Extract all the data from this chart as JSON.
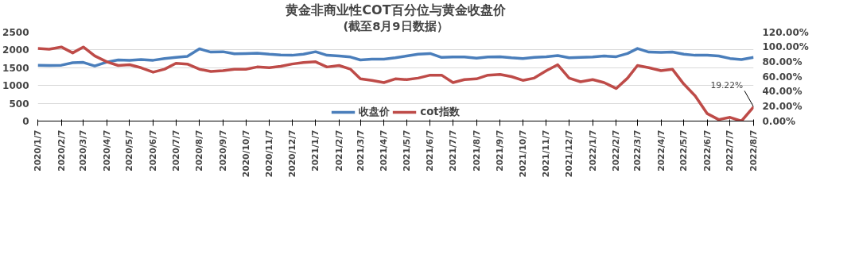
{
  "chart_data": {
    "type": "line",
    "title": "黄金非商业性COT百分位与黄金收盘价",
    "subtitle": "(截至8月9日数据）",
    "x": [
      "2020-01-07",
      "2020-01-22",
      "2020-02-07",
      "2020-02-22",
      "2020-03-07",
      "2020-03-22",
      "2020-04-07",
      "2020-04-22",
      "2020-05-07",
      "2020-05-22",
      "2020-06-07",
      "2020-06-22",
      "2020-07-07",
      "2020-07-22",
      "2020-08-07",
      "2020-08-22",
      "2020-09-07",
      "2020-09-22",
      "2020-10-07",
      "2020-10-22",
      "2020-11-07",
      "2020-11-22",
      "2020-12-07",
      "2020-12-22",
      "2021-01-07",
      "2021-01-22",
      "2021-02-07",
      "2021-02-22",
      "2021-03-07",
      "2021-03-22",
      "2021-04-07",
      "2021-04-22",
      "2021-05-07",
      "2021-05-22",
      "2021-06-07",
      "2021-06-22",
      "2021-07-07",
      "2021-07-22",
      "2021-08-07",
      "2021-08-22",
      "2021-09-07",
      "2021-09-22",
      "2021-10-07",
      "2021-10-22",
      "2021-11-07",
      "2021-11-22",
      "2021-12-07",
      "2021-12-22",
      "2022-01-07",
      "2022-01-22",
      "2022-02-07",
      "2022-02-22",
      "2022-03-07",
      "2022-03-22",
      "2022-04-07",
      "2022-04-22",
      "2022-05-07",
      "2022-05-22",
      "2022-06-07",
      "2022-06-22",
      "2022-07-07",
      "2022-07-22",
      "2022-08-07"
    ],
    "series": [
      {
        "name": "收盘价",
        "color": "#4a7ebb",
        "values": [
          1570,
          1560,
          1570,
          1640,
          1650,
          1550,
          1660,
          1720,
          1710,
          1730,
          1710,
          1760,
          1790,
          1820,
          2030,
          1940,
          1950,
          1890,
          1900,
          1910,
          1880,
          1860,
          1850,
          1880,
          1950,
          1850,
          1830,
          1800,
          1720,
          1740,
          1740,
          1780,
          1830,
          1880,
          1900,
          1790,
          1800,
          1800,
          1770,
          1800,
          1810,
          1780,
          1760,
          1790,
          1810,
          1840,
          1780,
          1790,
          1800,
          1830,
          1810,
          1900,
          2040,
          1940,
          1930,
          1940,
          1880,
          1850,
          1850,
          1830,
          1760,
          1730,
          1790
        ]
      },
      {
        "name": "cot指数",
        "color": "#be4b48",
        "axis": "y2",
        "values": [
          98,
          97,
          100,
          92,
          100,
          88,
          80,
          75,
          76,
          72,
          66,
          70,
          78,
          77,
          70,
          67,
          68,
          70,
          70,
          73,
          72,
          74,
          77,
          79,
          80,
          73,
          75,
          70,
          57,
          55,
          52,
          57,
          56,
          58,
          62,
          62,
          52,
          56,
          57,
          62,
          63,
          60,
          55,
          58,
          68,
          76,
          58,
          53,
          56,
          52,
          44,
          58,
          75,
          72,
          68,
          70,
          50,
          34,
          10,
          2,
          5,
          0,
          19.22
        ],
        "value_labels": [
          null,
          null,
          null,
          null,
          null,
          null,
          null,
          null,
          null,
          null,
          null,
          null,
          null,
          null,
          null,
          null,
          null,
          null,
          null,
          null,
          null,
          null,
          null,
          null,
          null,
          null,
          null,
          null,
          null,
          null,
          null,
          null,
          null,
          null,
          null,
          null,
          null,
          null,
          null,
          null,
          null,
          null,
          null,
          null,
          null,
          null,
          null,
          null,
          null,
          null,
          null,
          null,
          null,
          null,
          null,
          null,
          null,
          null,
          null,
          null,
          null,
          null,
          "19.22%"
        ]
      }
    ],
    "xlim": [
      "2020-01-07",
      "2022-08-07"
    ],
    "xticks": [
      {
        "value": "2020-01-07",
        "label": "2020/1/7"
      },
      {
        "value": "2020-02-07",
        "label": "2020/2/7"
      },
      {
        "value": "2020-03-07",
        "label": "2020/3/7"
      },
      {
        "value": "2020-04-07",
        "label": "2020/4/7"
      },
      {
        "value": "2020-05-07",
        "label": "2020/5/7"
      },
      {
        "value": "2020-06-07",
        "label": "2020/6/7"
      },
      {
        "value": "2020-07-07",
        "label": "2020/7/7"
      },
      {
        "value": "2020-08-07",
        "label": "2020/8/7"
      },
      {
        "value": "2020-09-07",
        "label": "2020/9/7"
      },
      {
        "value": "2020-10-07",
        "label": "2020/10/7"
      },
      {
        "value": "2020-11-07",
        "label": "2020/11/7"
      },
      {
        "value": "2020-12-07",
        "label": "2020/12/7"
      },
      {
        "value": "2021-01-07",
        "label": "2021/1/7"
      },
      {
        "value": "2021-02-07",
        "label": "2021/2/7"
      },
      {
        "value": "2021-03-07",
        "label": "2021/3/7"
      },
      {
        "value": "2021-04-07",
        "label": "2021/4/7"
      },
      {
        "value": "2021-05-07",
        "label": "2021/5/7"
      },
      {
        "value": "2021-06-07",
        "label": "2021/6/7"
      },
      {
        "value": "2021-07-07",
        "label": "2021/7/7"
      },
      {
        "value": "2021-08-07",
        "label": "2021/8/7"
      },
      {
        "value": "2021-09-07",
        "label": "2021/9/7"
      },
      {
        "value": "2021-10-07",
        "label": "2021/10/7"
      },
      {
        "value": "2021-11-07",
        "label": "2021/11/7"
      },
      {
        "value": "2021-12-07",
        "label": "2021/12/7"
      },
      {
        "value": "2022-01-07",
        "label": "2022/1/7"
      },
      {
        "value": "2022-02-07",
        "label": "2022/2/7"
      },
      {
        "value": "2022-03-07",
        "label": "2022/3/7"
      },
      {
        "value": "2022-04-07",
        "label": "2022/4/7"
      },
      {
        "value": "2022-05-07",
        "label": "2022/5/7"
      },
      {
        "value": "2022-06-07",
        "label": "2022/6/7"
      },
      {
        "value": "2022-07-07",
        "label": "2022/7/7"
      },
      {
        "value": "2022-08-07",
        "label": "2022/8/7"
      }
    ],
    "ylim": [
      0,
      2500
    ],
    "yticks": [
      0,
      500,
      1000,
      1500,
      2000,
      2500
    ],
    "y2lim": [
      0,
      120
    ],
    "y2ticks": [
      {
        "value": 0,
        "label": "0.00%"
      },
      {
        "value": 20,
        "label": "20.00%"
      },
      {
        "value": 40,
        "label": "40.00%"
      },
      {
        "value": 60,
        "label": "60.00%"
      },
      {
        "value": 80,
        "label": "80.00%"
      },
      {
        "value": 100,
        "label": "100.00%"
      },
      {
        "value": 120,
        "label": "120.00%"
      }
    ],
    "grid": "y",
    "legend": "bottom",
    "marker": "none",
    "line_style": "solid"
  }
}
